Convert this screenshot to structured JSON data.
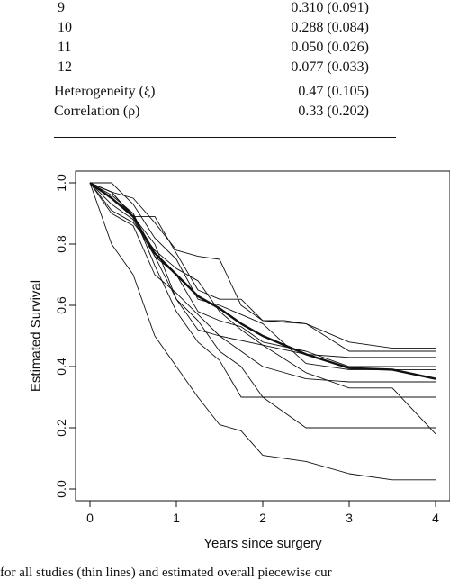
{
  "table": {
    "rows": [
      {
        "label": "9",
        "value": "0.310 (0.091)"
      },
      {
        "label": "10",
        "value": "0.288 (0.084)"
      },
      {
        "label": "11",
        "value": "0.050 (0.026)"
      },
      {
        "label": "12",
        "value": "0.077 (0.033)"
      },
      {
        "label": "Heterogeneity (ξ)",
        "value": "0.47 (0.105)"
      },
      {
        "label": "Correlation (ρ)",
        "value": "0.33 (0.202)"
      }
    ]
  },
  "chart_data": {
    "type": "line",
    "xlabel": "Years since surgery",
    "ylabel": "Estimated Survival",
    "xlim": [
      0,
      4
    ],
    "ylim": [
      0,
      1
    ],
    "xticks": [
      "0",
      "1",
      "2",
      "3",
      "4"
    ],
    "yticks": [
      "0.0",
      "0.2",
      "0.4",
      "0.6",
      "0.8",
      "1.0"
    ],
    "series": [
      {
        "values": [
          [
            0,
            1
          ],
          [
            0.25,
            0.97
          ],
          [
            0.5,
            0.89
          ],
          [
            0.75,
            0.89
          ],
          [
            1,
            0.77
          ],
          [
            1.25,
            0.65
          ],
          [
            1.5,
            0.62
          ],
          [
            1.75,
            0.62
          ],
          [
            2,
            0.55
          ],
          [
            2.5,
            0.54
          ],
          [
            3,
            0.48
          ],
          [
            3.5,
            0.46
          ],
          [
            4,
            0.46
          ]
        ]
      },
      {
        "values": [
          [
            0,
            1
          ],
          [
            0.25,
            0.97
          ],
          [
            0.5,
            0.95
          ],
          [
            0.75,
            0.87
          ],
          [
            1,
            0.78
          ],
          [
            1.25,
            0.76
          ],
          [
            1.5,
            0.75
          ],
          [
            1.75,
            0.6
          ],
          [
            2,
            0.55
          ],
          [
            2.25,
            0.55
          ],
          [
            2.5,
            0.54
          ],
          [
            3,
            0.45
          ],
          [
            4,
            0.45
          ]
        ]
      },
      {
        "values": [
          [
            0,
            1
          ],
          [
            0.25,
            1.0
          ],
          [
            0.5,
            0.93
          ],
          [
            0.75,
            0.82
          ],
          [
            1,
            0.75
          ],
          [
            1.25,
            0.62
          ],
          [
            1.5,
            0.6
          ],
          [
            1.75,
            0.57
          ],
          [
            2,
            0.54
          ],
          [
            2.5,
            0.41
          ],
          [
            3,
            0.39
          ],
          [
            4,
            0.39
          ]
        ]
      },
      {
        "values": [
          [
            0,
            1
          ],
          [
            0.25,
            0.95
          ],
          [
            0.5,
            0.9
          ],
          [
            0.75,
            0.76
          ],
          [
            1,
            0.7
          ],
          [
            1.25,
            0.58
          ],
          [
            1.5,
            0.55
          ],
          [
            1.75,
            0.53
          ],
          [
            2,
            0.48
          ],
          [
            2.5,
            0.45
          ],
          [
            3,
            0.4
          ],
          [
            4,
            0.4
          ]
        ]
      },
      {
        "values": [
          [
            0,
            1
          ],
          [
            0.25,
            0.9
          ],
          [
            0.5,
            0.86
          ],
          [
            0.75,
            0.7
          ],
          [
            1,
            0.64
          ],
          [
            1.25,
            0.57
          ],
          [
            1.5,
            0.5
          ],
          [
            1.75,
            0.45
          ],
          [
            2,
            0.4
          ],
          [
            2.5,
            0.36
          ],
          [
            3,
            0.35
          ],
          [
            4,
            0.35
          ]
        ]
      },
      {
        "values": [
          [
            0,
            1
          ],
          [
            0.25,
            0.91
          ],
          [
            0.5,
            0.87
          ],
          [
            0.75,
            0.78
          ],
          [
            1,
            0.72
          ],
          [
            1.25,
            0.68
          ],
          [
            1.5,
            0.58
          ],
          [
            1.75,
            0.52
          ],
          [
            2,
            0.47
          ],
          [
            2.5,
            0.44
          ],
          [
            3,
            0.43
          ],
          [
            4,
            0.43
          ]
        ]
      },
      {
        "values": [
          [
            0,
            1
          ],
          [
            0.25,
            0.96
          ],
          [
            0.5,
            0.9
          ],
          [
            0.75,
            0.73
          ],
          [
            1,
            0.58
          ],
          [
            1.25,
            0.48
          ],
          [
            1.5,
            0.42
          ],
          [
            1.75,
            0.3
          ],
          [
            2,
            0.3
          ],
          [
            3,
            0.3
          ],
          [
            4,
            0.3
          ]
        ]
      },
      {
        "values": [
          [
            0,
            1
          ],
          [
            0.25,
            0.97
          ],
          [
            0.5,
            0.89
          ],
          [
            0.75,
            0.8
          ],
          [
            1,
            0.62
          ],
          [
            1.25,
            0.55
          ],
          [
            1.5,
            0.45
          ],
          [
            1.75,
            0.4
          ],
          [
            2,
            0.3
          ],
          [
            2.5,
            0.2
          ],
          [
            3,
            0.2
          ],
          [
            4,
            0.2
          ]
        ]
      },
      {
        "values": [
          [
            0,
            1
          ],
          [
            0.25,
            0.93
          ],
          [
            0.5,
            0.88
          ],
          [
            0.75,
            0.76
          ],
          [
            1,
            0.62
          ],
          [
            1.25,
            0.52
          ],
          [
            1.5,
            0.5
          ],
          [
            2,
            0.47
          ],
          [
            2.5,
            0.38
          ],
          [
            3,
            0.33
          ],
          [
            3.5,
            0.33
          ],
          [
            4,
            0.18
          ]
        ]
      },
      {
        "values": [
          [
            0,
            1
          ],
          [
            0.25,
            0.8
          ],
          [
            0.5,
            0.7
          ],
          [
            0.75,
            0.5
          ],
          [
            1,
            0.4
          ],
          [
            1.25,
            0.3
          ],
          [
            1.5,
            0.21
          ],
          [
            1.75,
            0.19
          ],
          [
            2,
            0.11
          ],
          [
            2.5,
            0.09
          ],
          [
            3,
            0.05
          ],
          [
            3.5,
            0.03
          ],
          [
            4,
            0.03
          ]
        ]
      },
      {
        "bold": true,
        "values": [
          [
            0,
            1
          ],
          [
            0.25,
            0.95
          ],
          [
            0.5,
            0.89
          ],
          [
            0.75,
            0.77
          ],
          [
            1,
            0.7
          ],
          [
            1.25,
            0.63
          ],
          [
            1.5,
            0.59
          ],
          [
            1.75,
            0.54
          ],
          [
            2,
            0.5
          ],
          [
            2.5,
            0.44
          ],
          [
            3,
            0.395
          ],
          [
            3.5,
            0.39
          ],
          [
            4,
            0.36
          ]
        ]
      }
    ]
  },
  "caption": "for all studies (thin lines) and estimated overall piecewise cur"
}
